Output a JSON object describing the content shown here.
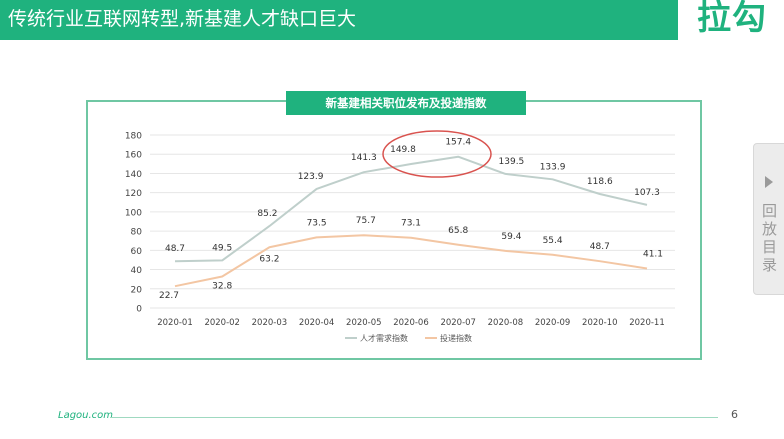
{
  "slide": {
    "title": "传统行业互联网转型,新基建人才缺口巨大",
    "logo": "拉勾",
    "footer_brand": "Lagou.com",
    "page_number": "6"
  },
  "side_tab": {
    "label": "回放目录"
  },
  "chart_data": {
    "type": "line",
    "title": "新基建相关职位发布及投递指数",
    "categories": [
      "2020-01",
      "2020-02",
      "2020-03",
      "2020-04",
      "2020-05",
      "2020-06",
      "2020-07",
      "2020-08",
      "2020-09",
      "2020-10",
      "2020-11"
    ],
    "ylim": [
      0,
      180
    ],
    "yticks": [
      0,
      20,
      40,
      60,
      80,
      100,
      120,
      140,
      160,
      180
    ],
    "legend_position": "bottom",
    "highlight": "2020-06 to 2020-07 of 人才需求指数 circled in red",
    "series": [
      {
        "name": "人才需求指数",
        "color": "#bfcfcb",
        "values": [
          48.7,
          49.5,
          85.2,
          123.9,
          141.3,
          149.8,
          157.4,
          139.5,
          133.9,
          118.6,
          107.3
        ]
      },
      {
        "name": "投递指数",
        "color": "#f3c6a3",
        "values": [
          22.7,
          32.8,
          63.2,
          73.5,
          75.7,
          73.1,
          65.8,
          59.4,
          55.4,
          48.7,
          41.1
        ]
      }
    ]
  }
}
